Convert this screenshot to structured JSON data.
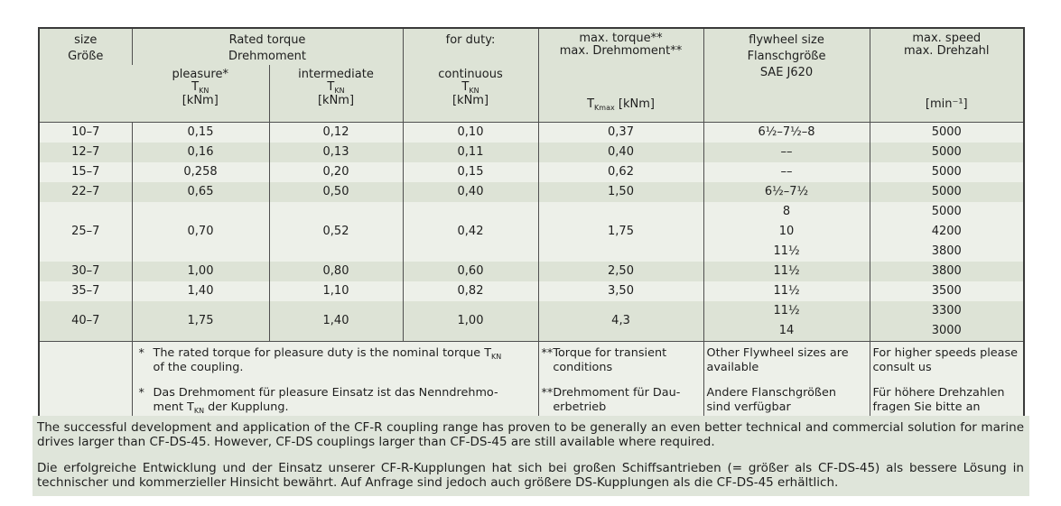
{
  "colors": {
    "row_light": "#edf0e9",
    "row_green": "#dde3d6",
    "header_bg": "#dde3d6",
    "paragraph_bg": "#dfe5da",
    "border_outer": "#3a3a3a",
    "border_inner": "#4f4f4f",
    "text": "#1e1e1e"
  },
  "table": {
    "header": {
      "size": "size\nGröße",
      "rated_torque": "Rated torque\nDrehmoment",
      "for_duty": "for duty:",
      "pleasure": {
        "label": "pleasure*",
        "t": "T",
        "t_sub": "KN",
        "unit": "[kNm]"
      },
      "intermediate": {
        "label": "intermediate",
        "t": "T",
        "t_sub": "KN",
        "unit": "[kNm]"
      },
      "continuous": {
        "label": "continuous",
        "t": "T",
        "t_sub": "KN",
        "unit": "[kNm]"
      },
      "max_torque": {
        "line1": "max. torque**",
        "line2": "max. Drehmoment**",
        "t": "T",
        "t_sub": "Kmax",
        "unit": " [kNm]"
      },
      "flywheel": "flywheel size\nFlanschgröße\nSAE J620",
      "max_speed": {
        "line1": "max. speed",
        "line2": "max. Drehzahl",
        "unit": "[min⁻¹]"
      }
    },
    "rows": [
      {
        "size": "10–7",
        "pleasure": "0,15",
        "intermediate": "0,12",
        "continuous": "0,10",
        "max_torque": "0,37",
        "flywheel": "6½–7½–8",
        "speed": "5000"
      },
      {
        "size": "12–7",
        "pleasure": "0,16",
        "intermediate": "0,13",
        "continuous": "0,11",
        "max_torque": "0,40",
        "flywheel": "––",
        "speed": "5000"
      },
      {
        "size": "15–7",
        "pleasure": "0,258",
        "intermediate": "0,20",
        "continuous": "0,15",
        "max_torque": "0,62",
        "flywheel": "––",
        "speed": "5000"
      },
      {
        "size": "22–7",
        "pleasure": "0,65",
        "intermediate": "0,50",
        "continuous": "0,40",
        "max_torque": "1,50",
        "flywheel": "6½–7½",
        "speed": "5000"
      },
      {
        "size": "25–7",
        "pleasure": "0,70",
        "intermediate": "0,52",
        "continuous": "0,42",
        "max_torque": "1,75",
        "flywheel": "8\n10\n11½",
        "speed": "5000\n4200\n3800"
      },
      {
        "size": "30–7",
        "pleasure": "1,00",
        "intermediate": "0,80",
        "continuous": "0,60",
        "max_torque": "2,50",
        "flywheel": "11½",
        "speed": "3800"
      },
      {
        "size": "35–7",
        "pleasure": "1,40",
        "intermediate": "1,10",
        "continuous": "0,82",
        "max_torque": "3,50",
        "flywheel": "11½",
        "speed": "3500"
      },
      {
        "size": "40–7",
        "pleasure": "1,75",
        "intermediate": "1,40",
        "continuous": "1,00",
        "max_torque": "4,3",
        "flywheel": "11½\n14",
        "speed": "3300\n3000"
      }
    ],
    "footnotes": {
      "torque": [
        {
          "marker": "*",
          "pre": "The rated torque for pleasure duty is the nominal torque T",
          "sub": "KN",
          "post": "\nof the coupling."
        },
        {
          "marker": "*",
          "pre": "Das Drehmoment für pleasure Einsatz ist das Nenndrehmo-\nment T",
          "sub": "KN",
          "post": " der Kupplung."
        }
      ],
      "max_torque": [
        {
          "marker": "**",
          "text": "Torque for transient\nconditions"
        },
        {
          "marker": "**",
          "text": "Drehmoment für Dau-\nerbetrieb"
        }
      ],
      "flywheel": [
        "Other Flywheel sizes are\navailable",
        "Andere Flanschgrößen\nsind verfügbar"
      ],
      "max_speed": [
        "For higher speeds please\nconsult us",
        "Für höhere Drehzahlen\nfragen Sie bitte an"
      ]
    }
  },
  "paragraphs": [
    "The successful development and application of the CF-R coupling range has proven to be generally an even better technical and commercial solution for marine drives larger than CF-DS-45. However, CF-DS couplings larger than CF-DS-45 are still available where required.",
    "Die erfolgreiche Entwicklung und der Einsatz unserer CF-R-Kupplungen hat sich bei großen Schiffsantrieben (= größer als CF-DS-45) als bessere Lösung in technischer und kommerzieller Hinsicht bewährt. Auf Anfrage sind jedoch auch größere DS-Kupplungen als die CF-DS-45 erhältlich."
  ]
}
